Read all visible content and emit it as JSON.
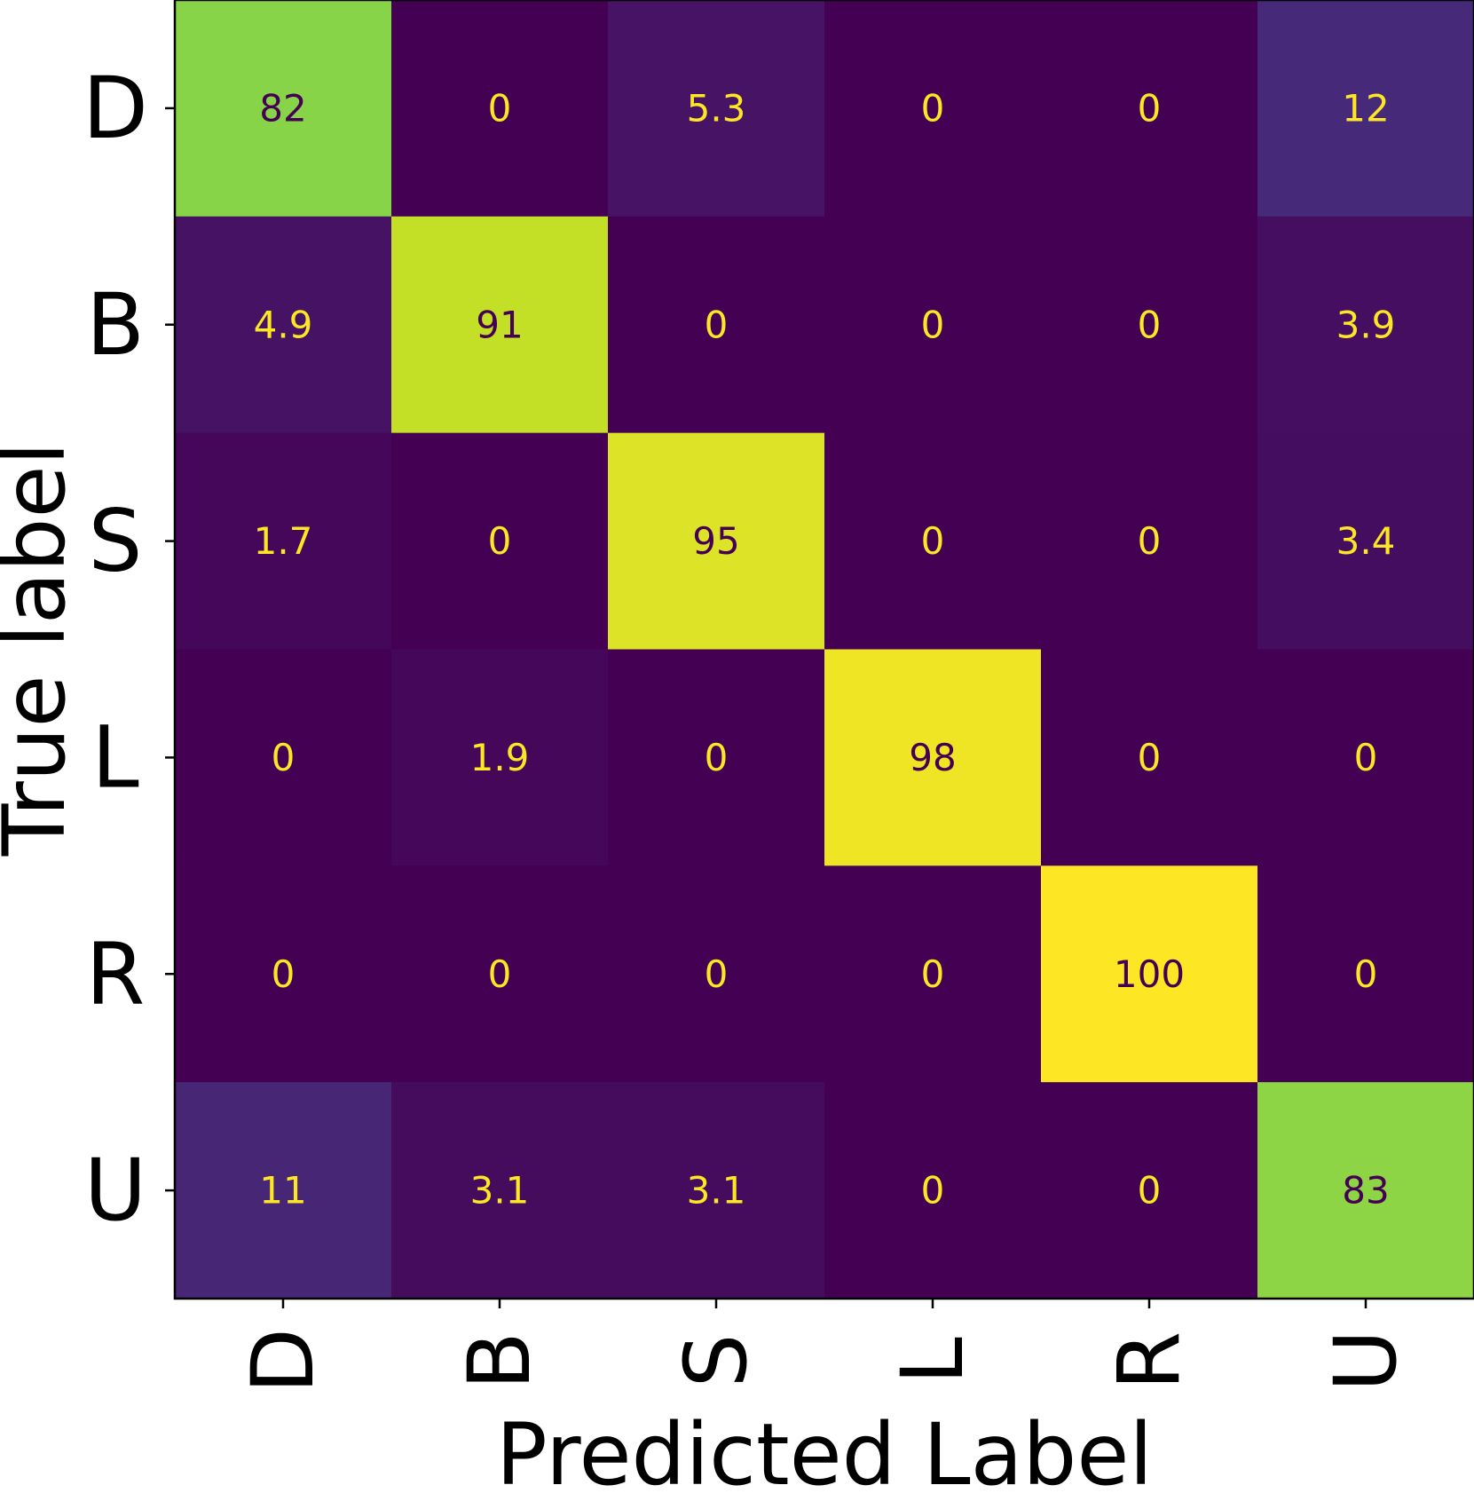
{
  "chart_data": {
    "type": "heatmap",
    "xlabel": "Predicted Label",
    "ylabel": "True label",
    "x_categories": [
      "D",
      "B",
      "S",
      "L",
      "R",
      "U"
    ],
    "y_categories": [
      "D",
      "B",
      "S",
      "L",
      "R",
      "U"
    ],
    "values": [
      [
        82,
        0,
        5.3,
        0,
        0,
        12
      ],
      [
        4.9,
        91,
        0,
        0,
        0,
        3.9
      ],
      [
        1.7,
        0,
        95,
        0,
        0,
        3.4
      ],
      [
        0,
        1.9,
        0,
        98,
        0,
        0
      ],
      [
        0,
        0,
        0,
        0,
        100,
        0
      ],
      [
        11,
        3.1,
        3.1,
        0,
        0,
        83
      ]
    ],
    "value_labels": [
      [
        "82",
        "0",
        "5.3",
        "0",
        "0",
        "12"
      ],
      [
        "4.9",
        "91",
        "0",
        "0",
        "0",
        "3.9"
      ],
      [
        "1.7",
        "0",
        "95",
        "0",
        "0",
        "3.4"
      ],
      [
        "0",
        "1.9",
        "0",
        "98",
        "0",
        "0"
      ],
      [
        "0",
        "0",
        "0",
        "0",
        "100",
        "0"
      ],
      [
        "11",
        "3.1",
        "3.1",
        "0",
        "0",
        "83"
      ]
    ],
    "value_range": [
      0,
      100
    ],
    "colormap": "viridis",
    "text_color_light": "#fde725",
    "text_color_dark": "#440154",
    "grid": false
  }
}
